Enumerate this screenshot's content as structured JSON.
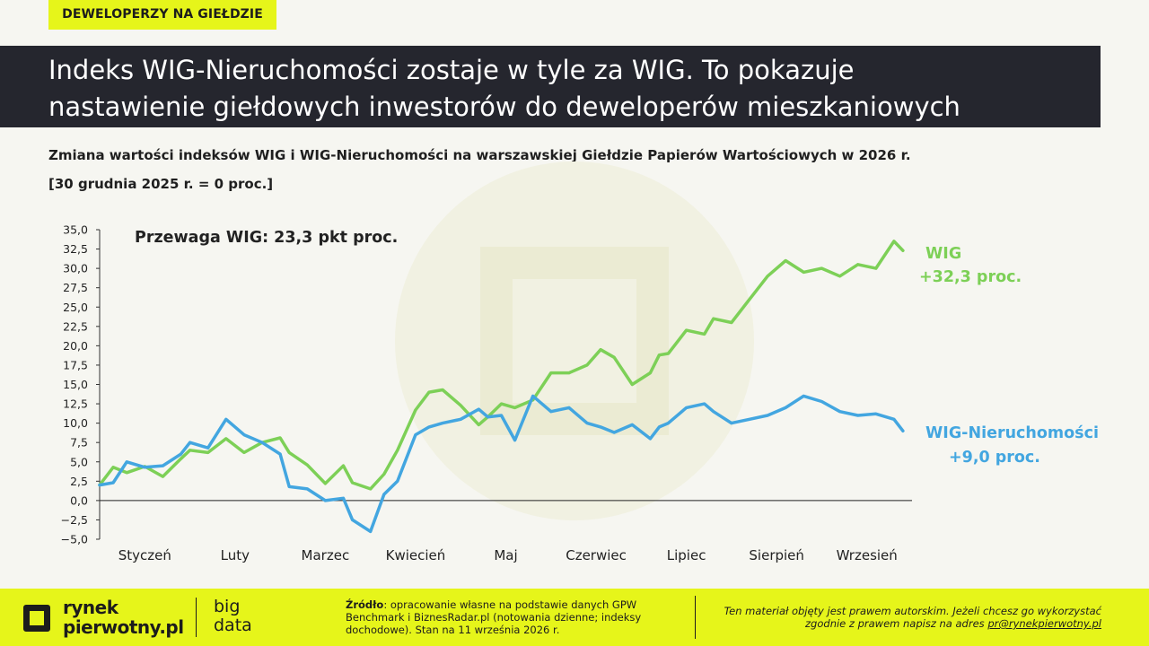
{
  "tag": "DEWELOPERZY NA GIEŁDZIE",
  "title_line1": "Indeks WIG-Nieruchomości zostaje w tyle za WIG. To pokazuje",
  "title_line2": "nastawienie giełdowych inwestorów do deweloperów mieszkaniowych",
  "subtitle": "Zmiana wartości indeksów WIG i WIG-Nieruchomości na warszawskiej Giełdzie Papierów Wartościowych w 2026 r.",
  "subtitle2": "[30 grudnia 2025 r. = 0 proc.]",
  "chart_data": {
    "type": "line",
    "annotation": "Przewaga WIG: 23,3 pkt proc.",
    "ylim": [
      -5,
      35
    ],
    "yticks": [
      "−5,0",
      "−2,5",
      "0,0",
      "2,5",
      "5,0",
      "7,5",
      "10,0",
      "12,5",
      "15,0",
      "17,5",
      "20,0",
      "22,5",
      "25,0",
      "27,5",
      "30,0",
      "32,5",
      "35,0"
    ],
    "yticks_values": [
      -5,
      -2.5,
      0,
      2.5,
      5,
      7.5,
      10,
      12.5,
      15,
      17.5,
      20,
      22.5,
      25,
      27.5,
      30,
      32.5,
      35
    ],
    "x_categories": [
      "Styczeń",
      "Luty",
      "Marzec",
      "Kwiecień",
      "Maj",
      "Czerwiec",
      "Lipiec",
      "Sierpień",
      "Wrzesień"
    ],
    "x_category_positions": [
      0.5,
      1.5,
      2.5,
      3.5,
      4.5,
      5.5,
      6.5,
      7.5,
      8.5
    ],
    "x_range": [
      0,
      9
    ],
    "series": [
      {
        "name": "WIG",
        "end_label": "+32,3 proc.",
        "color": "#7dd057",
        "x": [
          0.0,
          0.15,
          0.3,
          0.5,
          0.7,
          0.9,
          1.0,
          1.2,
          1.4,
          1.6,
          1.8,
          2.0,
          2.1,
          2.3,
          2.5,
          2.7,
          2.8,
          3.0,
          3.15,
          3.3,
          3.5,
          3.65,
          3.8,
          4.0,
          4.2,
          4.3,
          4.45,
          4.6,
          4.8,
          5.0,
          5.2,
          5.4,
          5.55,
          5.7,
          5.9,
          6.1,
          6.2,
          6.3,
          6.5,
          6.7,
          6.8,
          7.0,
          7.2,
          7.4,
          7.6,
          7.8,
          8.0,
          8.2,
          8.4,
          8.6,
          8.8,
          8.9
        ],
        "y": [
          2.0,
          4.3,
          3.6,
          4.4,
          3.1,
          5.4,
          6.5,
          6.2,
          8.0,
          6.2,
          7.5,
          8.1,
          6.2,
          4.6,
          2.2,
          4.5,
          2.3,
          1.5,
          3.4,
          6.5,
          11.7,
          14.0,
          14.3,
          12.3,
          9.8,
          10.8,
          12.5,
          12.0,
          13.0,
          16.5,
          16.5,
          17.5,
          19.5,
          18.5,
          15.0,
          16.5,
          18.8,
          19.0,
          22.0,
          21.5,
          23.5,
          23.0,
          26.0,
          29.0,
          31.0,
          29.5,
          30.0,
          29.0,
          30.5,
          30.0,
          33.5,
          32.3
        ]
      },
      {
        "name": "WIG-Nieruchomości",
        "end_label": "+9,0 proc.",
        "color": "#43a6e0",
        "x": [
          0.0,
          0.15,
          0.3,
          0.5,
          0.7,
          0.9,
          1.0,
          1.2,
          1.4,
          1.6,
          1.8,
          2.0,
          2.1,
          2.3,
          2.5,
          2.7,
          2.8,
          3.0,
          3.15,
          3.3,
          3.5,
          3.65,
          3.8,
          4.0,
          4.2,
          4.3,
          4.45,
          4.6,
          4.8,
          5.0,
          5.2,
          5.4,
          5.55,
          5.7,
          5.9,
          6.1,
          6.2,
          6.3,
          6.5,
          6.7,
          6.8,
          7.0,
          7.2,
          7.4,
          7.6,
          7.8,
          8.0,
          8.2,
          8.4,
          8.6,
          8.8,
          8.9
        ],
        "y": [
          2.0,
          2.3,
          5.0,
          4.3,
          4.5,
          6.0,
          7.5,
          6.8,
          10.5,
          8.5,
          7.5,
          6.0,
          1.8,
          1.5,
          0.0,
          0.3,
          -2.5,
          -4.0,
          0.8,
          2.5,
          8.5,
          9.5,
          10.0,
          10.5,
          11.8,
          10.8,
          11.0,
          7.8,
          13.5,
          11.5,
          12.0,
          10.0,
          9.5,
          8.8,
          9.8,
          8.0,
          9.5,
          10.0,
          12.0,
          12.5,
          11.5,
          10.0,
          10.5,
          11.0,
          12.0,
          13.5,
          12.8,
          11.5,
          11.0,
          11.2,
          10.5,
          9.0
        ]
      }
    ]
  },
  "footer": {
    "logo_line1": "rynek",
    "logo_line2": "pierwotny.pl",
    "big_line1": "big",
    "big_line2": "data",
    "source_label": "Źródło",
    "source_text": ": opracowanie własne na podstawie danych GPW Benchmark i BiznesRadar.pl (notowania dzienne; indeksy dochodowe). Stan na 11 września 2026 r.",
    "copyright_text": "Ten materiał objęty jest prawem autorskim. Jeżeli chcesz go wykorzystać zgodnie z prawem napisz na adres ",
    "copyright_email": "pr@rynekpierwotny.pl"
  }
}
